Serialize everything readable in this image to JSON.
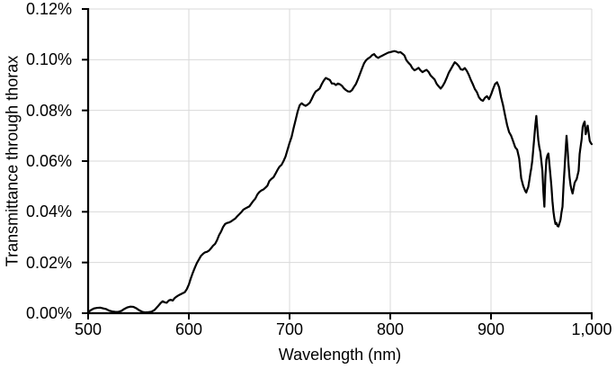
{
  "figure": {
    "background": "#ffffff",
    "line_color": "#000000",
    "grid_color": "#d9d9d9",
    "axis_color": "#000000",
    "text_color": "#000000"
  },
  "chart": {
    "ylabel": "Transmittance through thorax",
    "xlabel": "Wavelength (nm)",
    "y_ticks": [
      "0.00%",
      "0.02%",
      "0.04%",
      "0.06%",
      "0.08%",
      "0.10%",
      "0.12%"
    ],
    "x_ticks": [
      "500",
      "600",
      "700",
      "800",
      "900",
      "1,000"
    ]
  },
  "chart_data": {
    "type": "line",
    "title": "",
    "xlabel": "Wavelength (nm)",
    "ylabel": "Transmittance through thorax",
    "xlim": [
      500,
      1000
    ],
    "ylim": [
      0,
      0.12
    ],
    "x_unit": "nm",
    "y_unit": "percent",
    "grid": true,
    "legend_position": "none",
    "x_tick_labels": [
      "500",
      "600",
      "700",
      "800",
      "900",
      "1,000"
    ],
    "y_tick_labels": [
      "0.00%",
      "0.02%",
      "0.04%",
      "0.06%",
      "0.08%",
      "0.10%",
      "0.12%"
    ],
    "series": [
      {
        "name": "Transmittance through thorax",
        "color": "#000000",
        "points": [
          [
            500,
            0.0004
          ],
          [
            503,
            0.0013
          ],
          [
            506,
            0.0019
          ],
          [
            509,
            0.0021
          ],
          [
            512,
            0.0022
          ],
          [
            515,
            0.0019
          ],
          [
            518,
            0.0016
          ],
          [
            521,
            0.001
          ],
          [
            524,
            0.0007
          ],
          [
            527,
            0.0005
          ],
          [
            530,
            0.0005
          ],
          [
            533,
            0.0009
          ],
          [
            536,
            0.0017
          ],
          [
            539,
            0.0023
          ],
          [
            542,
            0.0026
          ],
          [
            545,
            0.0025
          ],
          [
            548,
            0.0019
          ],
          [
            551,
            0.0011
          ],
          [
            554,
            0.0005
          ],
          [
            557,
            0.0003
          ],
          [
            560,
            0.0004
          ],
          [
            563,
            0.0006
          ],
          [
            566,
            0.0013
          ],
          [
            569,
            0.0026
          ],
          [
            572,
            0.004
          ],
          [
            574,
            0.0047
          ],
          [
            576,
            0.0043
          ],
          [
            578,
            0.0041
          ],
          [
            580,
            0.005
          ],
          [
            582,
            0.0053
          ],
          [
            584,
            0.005
          ],
          [
            586,
            0.006
          ],
          [
            588,
            0.0066
          ],
          [
            590,
            0.0071
          ],
          [
            592,
            0.0075
          ],
          [
            594,
            0.0079
          ],
          [
            596,
            0.0083
          ],
          [
            598,
            0.0095
          ],
          [
            600,
            0.0113
          ],
          [
            602,
            0.0138
          ],
          [
            604,
            0.016
          ],
          [
            606,
            0.018
          ],
          [
            608,
            0.0198
          ],
          [
            610,
            0.0212
          ],
          [
            612,
            0.0226
          ],
          [
            614,
            0.0234
          ],
          [
            616,
            0.024
          ],
          [
            618,
            0.0242
          ],
          [
            620,
            0.0247
          ],
          [
            622,
            0.0256
          ],
          [
            624,
            0.0266
          ],
          [
            626,
            0.0273
          ],
          [
            628,
            0.0288
          ],
          [
            630,
            0.0308
          ],
          [
            632,
            0.0322
          ],
          [
            634,
            0.034
          ],
          [
            636,
            0.0352
          ],
          [
            638,
            0.0356
          ],
          [
            640,
            0.0358
          ],
          [
            642,
            0.0362
          ],
          [
            644,
            0.0368
          ],
          [
            646,
            0.0373
          ],
          [
            648,
            0.0382
          ],
          [
            650,
            0.039
          ],
          [
            652,
            0.0398
          ],
          [
            654,
            0.0408
          ],
          [
            656,
            0.0413
          ],
          [
            658,
            0.0417
          ],
          [
            660,
            0.0421
          ],
          [
            662,
            0.0432
          ],
          [
            664,
            0.0443
          ],
          [
            666,
            0.0452
          ],
          [
            668,
            0.0468
          ],
          [
            670,
            0.0478
          ],
          [
            672,
            0.0484
          ],
          [
            674,
            0.0488
          ],
          [
            676,
            0.0495
          ],
          [
            678,
            0.0503
          ],
          [
            680,
            0.0522
          ],
          [
            682,
            0.053
          ],
          [
            684,
            0.0536
          ],
          [
            686,
            0.055
          ],
          [
            688,
            0.0565
          ],
          [
            690,
            0.0578
          ],
          [
            692,
            0.0585
          ],
          [
            694,
            0.06
          ],
          [
            696,
            0.0618
          ],
          [
            698,
            0.0645
          ],
          [
            700,
            0.0672
          ],
          [
            702,
            0.0695
          ],
          [
            704,
            0.073
          ],
          [
            706,
            0.0762
          ],
          [
            708,
            0.0795
          ],
          [
            710,
            0.082
          ],
          [
            712,
            0.0828
          ],
          [
            714,
            0.0822
          ],
          [
            716,
            0.0818
          ],
          [
            718,
            0.0823
          ],
          [
            720,
            0.083
          ],
          [
            722,
            0.0845
          ],
          [
            724,
            0.0862
          ],
          [
            726,
            0.0875
          ],
          [
            728,
            0.088
          ],
          [
            730,
            0.0887
          ],
          [
            732,
            0.0904
          ],
          [
            734,
            0.0918
          ],
          [
            736,
            0.0928
          ],
          [
            738,
            0.0924
          ],
          [
            740,
            0.092
          ],
          [
            742,
            0.0906
          ],
          [
            744,
            0.0906
          ],
          [
            746,
            0.09
          ],
          [
            748,
            0.0906
          ],
          [
            750,
            0.0903
          ],
          [
            752,
            0.0897
          ],
          [
            754,
            0.0887
          ],
          [
            756,
            0.088
          ],
          [
            758,
            0.0875
          ],
          [
            760,
            0.0874
          ],
          [
            762,
            0.088
          ],
          [
            764,
            0.0893
          ],
          [
            766,
            0.0905
          ],
          [
            768,
            0.0924
          ],
          [
            770,
            0.0945
          ],
          [
            772,
            0.0966
          ],
          [
            774,
            0.0986
          ],
          [
            776,
            0.0998
          ],
          [
            778,
            0.1005
          ],
          [
            780,
            0.101
          ],
          [
            782,
            0.1018
          ],
          [
            784,
            0.1022
          ],
          [
            786,
            0.1012
          ],
          [
            788,
            0.1007
          ],
          [
            790,
            0.1012
          ],
          [
            792,
            0.1016
          ],
          [
            794,
            0.102
          ],
          [
            796,
            0.1024
          ],
          [
            798,
            0.1028
          ],
          [
            800,
            0.103
          ],
          [
            802,
            0.1032
          ],
          [
            804,
            0.1034
          ],
          [
            806,
            0.1032
          ],
          [
            808,
            0.1028
          ],
          [
            810,
            0.103
          ],
          [
            812,
            0.1024
          ],
          [
            814,
            0.1017
          ],
          [
            816,
            0.0998
          ],
          [
            818,
            0.0988
          ],
          [
            820,
            0.098
          ],
          [
            822,
            0.0966
          ],
          [
            824,
            0.0958
          ],
          [
            826,
            0.0962
          ],
          [
            828,
            0.0968
          ],
          [
            830,
            0.0958
          ],
          [
            832,
            0.0951
          ],
          [
            834,
            0.0956
          ],
          [
            836,
            0.096
          ],
          [
            838,
            0.0952
          ],
          [
            840,
            0.0938
          ],
          [
            842,
            0.093
          ],
          [
            844,
            0.0922
          ],
          [
            846,
            0.0905
          ],
          [
            848,
            0.0895
          ],
          [
            850,
            0.0886
          ],
          [
            852,
            0.0896
          ],
          [
            854,
            0.091
          ],
          [
            856,
            0.0928
          ],
          [
            858,
            0.0948
          ],
          [
            860,
            0.0962
          ],
          [
            862,
            0.0976
          ],
          [
            864,
            0.099
          ],
          [
            866,
            0.0984
          ],
          [
            868,
            0.0975
          ],
          [
            870,
            0.0962
          ],
          [
            872,
            0.096
          ],
          [
            874,
            0.0967
          ],
          [
            876,
            0.0956
          ],
          [
            878,
            0.094
          ],
          [
            880,
            0.092
          ],
          [
            882,
            0.0903
          ],
          [
            884,
            0.0884
          ],
          [
            886,
            0.0872
          ],
          [
            888,
            0.0852
          ],
          [
            890,
            0.0842
          ],
          [
            892,
            0.0838
          ],
          [
            894,
            0.085
          ],
          [
            896,
            0.0856
          ],
          [
            898,
            0.0844
          ],
          [
            900,
            0.0862
          ],
          [
            902,
            0.0884
          ],
          [
            904,
            0.0904
          ],
          [
            906,
            0.0911
          ],
          [
            908,
            0.0892
          ],
          [
            910,
            0.0852
          ],
          [
            912,
            0.082
          ],
          [
            914,
            0.078
          ],
          [
            916,
            0.0742
          ],
          [
            918,
            0.0714
          ],
          [
            920,
            0.07
          ],
          [
            922,
            0.0678
          ],
          [
            924,
            0.0655
          ],
          [
            926,
            0.0645
          ],
          [
            928,
            0.061
          ],
          [
            930,
            0.0532
          ],
          [
            932,
            0.0502
          ],
          [
            934,
            0.0482
          ],
          [
            935,
            0.0476
          ],
          [
            936,
            0.0488
          ],
          [
            937,
            0.0498
          ],
          [
            938,
            0.0522
          ],
          [
            939,
            0.0549
          ],
          [
            940,
            0.0572
          ],
          [
            941,
            0.0602
          ],
          [
            942,
            0.0648
          ],
          [
            943,
            0.0694
          ],
          [
            944,
            0.0742
          ],
          [
            945,
            0.0778
          ],
          [
            946,
            0.0728
          ],
          [
            947,
            0.0682
          ],
          [
            948,
            0.0654
          ],
          [
            949,
            0.0636
          ],
          [
            950,
            0.06
          ],
          [
            951,
            0.0562
          ],
          [
            952,
            0.0478
          ],
          [
            953,
            0.042
          ],
          [
            954,
            0.054
          ],
          [
            955,
            0.0606
          ],
          [
            956,
            0.0622
          ],
          [
            957,
            0.063
          ],
          [
            958,
            0.0588
          ],
          [
            959,
            0.0545
          ],
          [
            960,
            0.05
          ],
          [
            961,
            0.0442
          ],
          [
            962,
            0.04
          ],
          [
            963,
            0.0372
          ],
          [
            964,
            0.0352
          ],
          [
            965,
            0.0356
          ],
          [
            966,
            0.0344
          ],
          [
            967,
            0.0342
          ],
          [
            968,
            0.0355
          ],
          [
            969,
            0.0368
          ],
          [
            970,
            0.0398
          ],
          [
            971,
            0.042
          ],
          [
            972,
            0.0502
          ],
          [
            973,
            0.0568
          ],
          [
            974,
            0.0636
          ],
          [
            975,
            0.07
          ],
          [
            976,
            0.0648
          ],
          [
            977,
            0.0586
          ],
          [
            978,
            0.0536
          ],
          [
            979,
            0.0505
          ],
          [
            980,
            0.0486
          ],
          [
            981,
            0.0472
          ],
          [
            982,
            0.0492
          ],
          [
            983,
            0.0514
          ],
          [
            984,
            0.0522
          ],
          [
            985,
            0.0528
          ],
          [
            986,
            0.0545
          ],
          [
            987,
            0.0562
          ],
          [
            988,
            0.0628
          ],
          [
            989,
            0.0658
          ],
          [
            990,
            0.0686
          ],
          [
            991,
            0.0734
          ],
          [
            992,
            0.0748
          ],
          [
            993,
            0.0756
          ],
          [
            994,
            0.0706
          ],
          [
            995,
            0.0722
          ],
          [
            996,
            0.074
          ],
          [
            997,
            0.071
          ],
          [
            998,
            0.068
          ],
          [
            999,
            0.0672
          ],
          [
            1000,
            0.0667
          ]
        ]
      }
    ]
  }
}
